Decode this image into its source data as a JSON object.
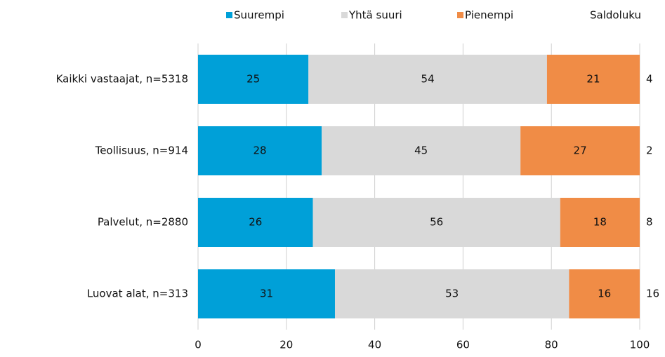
{
  "chart_data": {
    "type": "bar",
    "orientation": "horizontal",
    "stacked": true,
    "categories": [
      "Kaikki vastaajat, n=5318",
      "Teollisuus, n=914",
      "Palvelut, n=2880",
      "Luovat alat, n=313"
    ],
    "series": [
      {
        "name": "Suurempi",
        "color": "#00a0d8",
        "values": [
          25,
          28,
          26,
          31
        ]
      },
      {
        "name": "Yhtä suuri",
        "color": "#d9d9d9",
        "values": [
          54,
          45,
          56,
          53
        ]
      },
      {
        "name": "Pienempi",
        "color": "#f08c46",
        "values": [
          21,
          27,
          18,
          16
        ]
      }
    ],
    "side_column": {
      "name": "Saldoluku",
      "values": [
        4,
        2,
        8,
        16
      ]
    },
    "xlim": [
      0,
      100
    ],
    "xticks": [
      0,
      20,
      40,
      60,
      80,
      100
    ],
    "grid": true,
    "legend": "top"
  }
}
